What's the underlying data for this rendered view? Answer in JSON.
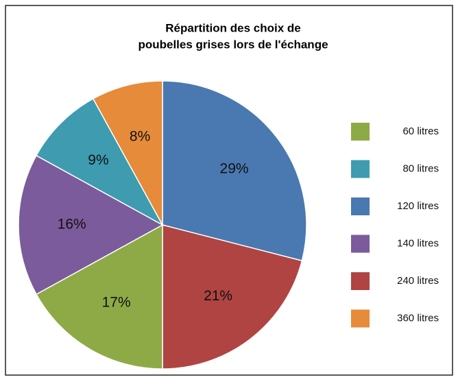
{
  "chart_data": {
    "type": "pie",
    "title": [
      "Répartition des choix de",
      "poubelles grises lors de l'échange"
    ],
    "categories": [
      "120 litres",
      "240 litres",
      "60 litres",
      "140 litres",
      "80 litres",
      "360 litres"
    ],
    "values": [
      29,
      21,
      17,
      16,
      9,
      8
    ],
    "value_labels": [
      "29%",
      "21%",
      "17%",
      "16%",
      "9%",
      "8%"
    ],
    "colors": [
      "#4a78b0",
      "#b04442",
      "#8eaa47",
      "#7b5b9b",
      "#3e9bb0",
      "#e58b3a"
    ],
    "legend": "right"
  }
}
